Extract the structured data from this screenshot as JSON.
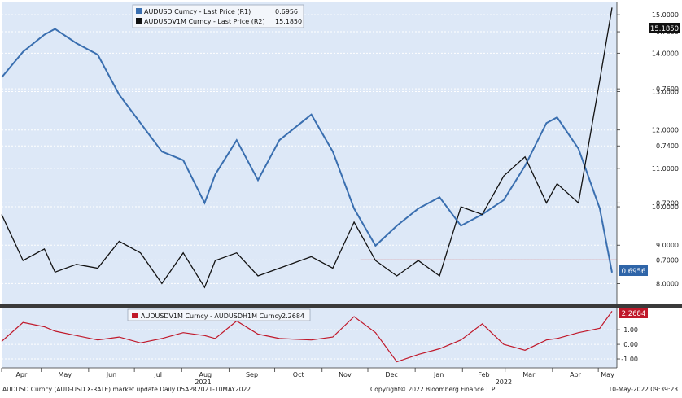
{
  "chart_data": [
    {
      "type": "line",
      "panel": "upper",
      "legend": [
        {
          "label": "AUDUSD Curncy - Last Price (R1)",
          "last_value": "0.6956",
          "color": "#3a6fb0"
        },
        {
          "label": "AUDUSDV1M Curncy - Last Price (R2)",
          "last_value": "15.1850",
          "color": "#111111"
        }
      ],
      "right_axis_labels": [
        "15.0000",
        "14.0000",
        "0.7800",
        "13.0000",
        "0.7600",
        "12.0000",
        "0.7400",
        "11.0000",
        "10.0000",
        "0.7200",
        "9.0000",
        "0.7000",
        "8.0000"
      ],
      "last_price_labels": {
        "audusd": "0.6956",
        "vol": "15.1850"
      },
      "ylim_r1": [
        0.685,
        0.79
      ],
      "ylim_r2": [
        7.5,
        15.3
      ],
      "reference_line": {
        "value": 0.7,
        "color": "#d03030"
      },
      "x": [
        "2021-04-05",
        "2021-04-19",
        "2021-05-03",
        "2021-05-10",
        "2021-05-24",
        "2021-06-07",
        "2021-06-21",
        "2021-07-05",
        "2021-07-19",
        "2021-08-02",
        "2021-08-16",
        "2021-08-23",
        "2021-09-06",
        "2021-09-20",
        "2021-10-04",
        "2021-10-25",
        "2021-11-08",
        "2021-11-22",
        "2021-12-06",
        "2021-12-20",
        "2022-01-03",
        "2022-01-17",
        "2022-01-31",
        "2022-02-14",
        "2022-02-28",
        "2022-03-14",
        "2022-03-28",
        "2022-04-04",
        "2022-04-18",
        "2022-05-02",
        "2022-05-10"
      ],
      "series": [
        {
          "name": "AUDUSD Curncy",
          "axis": "R1",
          "color": "#3a6fb0",
          "values": [
            0.764,
            0.773,
            0.779,
            0.781,
            0.776,
            0.772,
            0.758,
            0.748,
            0.738,
            0.735,
            0.72,
            0.73,
            0.742,
            0.728,
            0.742,
            0.751,
            0.738,
            0.718,
            0.705,
            0.712,
            0.718,
            0.722,
            0.712,
            0.716,
            0.721,
            0.733,
            0.748,
            0.75,
            0.739,
            0.718,
            0.6956
          ]
        },
        {
          "name": "AUDUSDV1M Curncy",
          "axis": "R2",
          "color": "#111111",
          "values": [
            9.8,
            8.6,
            8.9,
            8.3,
            8.5,
            8.4,
            9.1,
            8.8,
            8.0,
            8.8,
            7.9,
            8.6,
            8.8,
            8.2,
            8.4,
            8.7,
            8.4,
            9.6,
            8.6,
            8.2,
            8.6,
            8.2,
            10.0,
            9.8,
            10.8,
            11.3,
            10.1,
            10.6,
            10.1,
            13.3,
            15.185
          ]
        }
      ]
    },
    {
      "type": "line",
      "panel": "lower",
      "legend": [
        {
          "label": "AUDUSDV1M Curncy - AUDUSDH1M Curncy",
          "last_value": "2.2684",
          "color": "#c0182a"
        }
      ],
      "right_axis_labels": [
        "1.00",
        "0.00",
        "-1.00"
      ],
      "last_price_label": "2.2684",
      "ylim": [
        -1.5,
        2.4
      ],
      "x": [
        "2021-04-05",
        "2021-04-19",
        "2021-05-03",
        "2021-05-10",
        "2021-05-24",
        "2021-06-07",
        "2021-06-21",
        "2021-07-05",
        "2021-07-19",
        "2021-08-02",
        "2021-08-16",
        "2021-08-23",
        "2021-09-06",
        "2021-09-20",
        "2021-10-04",
        "2021-10-25",
        "2021-11-08",
        "2021-11-22",
        "2021-12-06",
        "2021-12-20",
        "2022-01-03",
        "2022-01-17",
        "2022-01-31",
        "2022-02-14",
        "2022-02-28",
        "2022-03-14",
        "2022-03-28",
        "2022-04-04",
        "2022-04-18",
        "2022-05-02",
        "2022-05-10"
      ],
      "series": [
        {
          "name": "AUDUSDV1M Curncy - AUDUSDH1M Curncy",
          "color": "#c0182a",
          "values": [
            0.2,
            1.5,
            1.2,
            0.9,
            0.6,
            0.3,
            0.5,
            0.1,
            0.4,
            0.8,
            0.6,
            0.4,
            1.6,
            0.7,
            0.4,
            0.3,
            0.5,
            1.9,
            0.8,
            -1.2,
            -0.7,
            -0.3,
            0.3,
            1.4,
            0.0,
            -0.4,
            0.3,
            0.4,
            0.8,
            1.1,
            2.2684
          ]
        }
      ]
    }
  ],
  "x_axis": {
    "month_labels": [
      "Apr",
      "May",
      "Jun",
      "Jul",
      "Aug",
      "Sep",
      "Oct",
      "Nov",
      "Dec",
      "Jan",
      "Feb",
      "Mar",
      "Apr",
      "May"
    ],
    "year_labels": [
      "2021",
      "2022"
    ]
  },
  "footer": {
    "left": "AUDUSD Curncy (AUD-USD X-RATE) market update  Daily 05APR2021-10MAY2022",
    "center": "Copyright© 2022 Bloomberg Finance L.P.",
    "right": "10-May-2022 09:39:23"
  },
  "colors": {
    "panel_bg": "#dde8f7",
    "grid": "#ffffff",
    "audusd": "#3a6fb0",
    "vol": "#111111",
    "spread": "#c0182a",
    "reference": "#d03030"
  }
}
